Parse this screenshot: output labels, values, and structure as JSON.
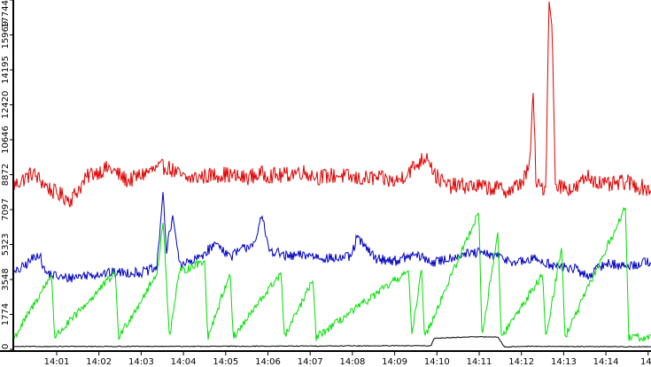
{
  "chart_data": {
    "type": "line",
    "title": "",
    "xlabel": "",
    "ylabel": "",
    "ylim": [
      0,
      17744
    ],
    "xlim": [
      "14:00:21",
      "14:15:02"
    ],
    "grid": false,
    "legend": "none",
    "background": "#ffffff",
    "axis_color": "#000000",
    "y_ticks": [
      {
        "value": 0,
        "label": "0"
      },
      {
        "value": 1774,
        "label": "1774"
      },
      {
        "value": 3548,
        "label": "3548"
      },
      {
        "value": 5323,
        "label": "5323"
      },
      {
        "value": 7097,
        "label": "7097"
      },
      {
        "value": 8872,
        "label": "8872"
      },
      {
        "value": 10646,
        "label": "10646"
      },
      {
        "value": 12420,
        "label": "12420"
      },
      {
        "value": 14195,
        "label": "14195"
      },
      {
        "value": 15969,
        "label": "15969"
      },
      {
        "value": 17744,
        "label": "17744"
      }
    ],
    "x_ticks": [
      "14:01",
      "14:02",
      "14:03",
      "14:04",
      "14:05",
      "14:06",
      "14:07",
      "14:08",
      "14:09",
      "14:10",
      "14:11",
      "14:12",
      "14:13",
      "14:14",
      "14"
    ],
    "series": [
      {
        "color": "#e00000",
        "baseline": 8700,
        "noise": 420,
        "points": [
          [
            0,
            8300
          ],
          [
            0.03,
            8950
          ],
          [
            0.06,
            8050
          ],
          [
            0.09,
            7600
          ],
          [
            0.12,
            8900
          ],
          [
            0.15,
            9200
          ],
          [
            0.18,
            8550
          ],
          [
            0.21,
            9000
          ],
          [
            0.24,
            9300
          ],
          [
            0.27,
            8650
          ],
          [
            0.3,
            8800
          ],
          [
            0.33,
            8900
          ],
          [
            0.36,
            8700
          ],
          [
            0.39,
            8900
          ],
          [
            0.42,
            8800
          ],
          [
            0.45,
            9050
          ],
          [
            0.48,
            8750
          ],
          [
            0.51,
            8850
          ],
          [
            0.54,
            8650
          ],
          [
            0.57,
            8700
          ],
          [
            0.6,
            8500
          ],
          [
            0.63,
            9300
          ],
          [
            0.65,
            9900
          ],
          [
            0.66,
            8900
          ],
          [
            0.68,
            8300
          ],
          [
            0.72,
            8300
          ],
          [
            0.75,
            8200
          ],
          [
            0.78,
            8050
          ],
          [
            0.8,
            8600
          ],
          [
            0.81,
            9350
          ],
          [
            0.815,
            13300
          ],
          [
            0.82,
            8300
          ],
          [
            0.835,
            8200
          ],
          [
            0.84,
            17744
          ],
          [
            0.845,
            16300
          ],
          [
            0.85,
            8400
          ],
          [
            0.88,
            8100
          ],
          [
            0.9,
            8800
          ],
          [
            0.93,
            8300
          ],
          [
            0.96,
            8500
          ],
          [
            0.98,
            8300
          ],
          [
            1.0,
            8100
          ]
        ]
      },
      {
        "color": "#0000c0",
        "baseline": 4300,
        "noise": 260,
        "points": [
          [
            0,
            3800
          ],
          [
            0.02,
            4300
          ],
          [
            0.04,
            4900
          ],
          [
            0.05,
            3900
          ],
          [
            0.08,
            3600
          ],
          [
            0.12,
            3800
          ],
          [
            0.16,
            3900
          ],
          [
            0.2,
            3900
          ],
          [
            0.225,
            4100
          ],
          [
            0.235,
            8100
          ],
          [
            0.24,
            4900
          ],
          [
            0.25,
            6800
          ],
          [
            0.255,
            5700
          ],
          [
            0.26,
            4400
          ],
          [
            0.28,
            4400
          ],
          [
            0.3,
            4900
          ],
          [
            0.32,
            5400
          ],
          [
            0.34,
            4700
          ],
          [
            0.38,
            5500
          ],
          [
            0.39,
            6800
          ],
          [
            0.4,
            5100
          ],
          [
            0.43,
            4700
          ],
          [
            0.46,
            4800
          ],
          [
            0.5,
            4600
          ],
          [
            0.53,
            4700
          ],
          [
            0.54,
            5800
          ],
          [
            0.55,
            5200
          ],
          [
            0.57,
            4600
          ],
          [
            0.6,
            4500
          ],
          [
            0.63,
            4800
          ],
          [
            0.66,
            4400
          ],
          [
            0.7,
            4800
          ],
          [
            0.73,
            4900
          ],
          [
            0.76,
            4700
          ],
          [
            0.79,
            4400
          ],
          [
            0.82,
            4600
          ],
          [
            0.85,
            4200
          ],
          [
            0.88,
            4100
          ],
          [
            0.9,
            3700
          ],
          [
            0.93,
            4400
          ],
          [
            0.96,
            4200
          ],
          [
            1.0,
            4500
          ]
        ]
      },
      {
        "color": "#00e000",
        "baseline": 600,
        "noise": 200,
        "points": [
          [
            0,
            500
          ],
          [
            0.06,
            3800
          ],
          [
            0.065,
            600
          ],
          [
            0.16,
            3900
          ],
          [
            0.165,
            600
          ],
          [
            0.225,
            3800
          ],
          [
            0.235,
            6500
          ],
          [
            0.245,
            600
          ],
          [
            0.26,
            3900
          ],
          [
            0.3,
            4500
          ],
          [
            0.305,
            600
          ],
          [
            0.34,
            3900
          ],
          [
            0.345,
            600
          ],
          [
            0.42,
            3900
          ],
          [
            0.425,
            600
          ],
          [
            0.47,
            3500
          ],
          [
            0.475,
            600
          ],
          [
            0.62,
            4000
          ],
          [
            0.625,
            600
          ],
          [
            0.64,
            4200
          ],
          [
            0.645,
            600
          ],
          [
            0.73,
            7000
          ],
          [
            0.735,
            600
          ],
          [
            0.76,
            6000
          ],
          [
            0.765,
            600
          ],
          [
            0.83,
            3800
          ],
          [
            0.835,
            600
          ],
          [
            0.86,
            5200
          ],
          [
            0.865,
            600
          ],
          [
            0.96,
            7200
          ],
          [
            0.965,
            600
          ],
          [
            1.0,
            600
          ]
        ]
      },
      {
        "color": "#000000",
        "baseline": 110,
        "noise": 20,
        "points": [
          [
            0,
            140
          ],
          [
            0.3,
            150
          ],
          [
            0.6,
            180
          ],
          [
            0.655,
            180
          ],
          [
            0.66,
            560
          ],
          [
            0.72,
            640
          ],
          [
            0.76,
            620
          ],
          [
            0.77,
            120
          ],
          [
            0.8,
            150
          ],
          [
            1.0,
            130
          ]
        ]
      }
    ]
  }
}
